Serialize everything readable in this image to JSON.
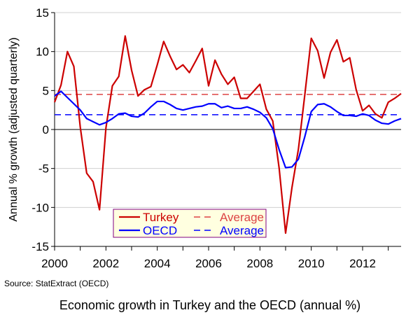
{
  "chart_data": {
    "type": "line",
    "title": "Economic growth in Turkey and the OECD (annual %)",
    "source": "Source: StatExtract (OECD)",
    "xlabel": "",
    "ylabel": "Annual % growth (adjusted quarterly)",
    "xlim": [
      2000,
      2013.5
    ],
    "ylim": [
      -15,
      15
    ],
    "x_tick_labels": [
      "2000",
      "2002",
      "2004",
      "2006",
      "2008",
      "2010",
      "2012"
    ],
    "y_tick_labels": [
      "15",
      "10",
      "5",
      "0",
      "-5",
      "-10",
      "-15"
    ],
    "grid": true,
    "legend_position": "bottom-left",
    "x": [
      2000,
      2000.25,
      2000.5,
      2000.75,
      2001,
      2001.25,
      2001.5,
      2001.75,
      2002,
      2002.25,
      2002.5,
      2002.75,
      2003,
      2003.25,
      2003.5,
      2003.75,
      2004,
      2004.25,
      2004.5,
      2004.75,
      2005,
      2005.25,
      2005.5,
      2005.75,
      2006,
      2006.25,
      2006.5,
      2006.75,
      2007,
      2007.25,
      2007.5,
      2007.75,
      2008,
      2008.25,
      2008.5,
      2008.75,
      2009,
      2009.25,
      2009.5,
      2009.75,
      2010,
      2010.25,
      2010.5,
      2010.75,
      2011,
      2011.25,
      2011.5,
      2011.75,
      2012,
      2012.25,
      2012.5,
      2012.75,
      2013,
      2013.25,
      2013.5
    ],
    "series": [
      {
        "name": "Turkey",
        "color": "#cc0000",
        "style": "solid",
        "values": [
          3.5,
          5.7,
          10.0,
          8.1,
          0.3,
          -5.6,
          -6.7,
          -10.3,
          0.2,
          5.6,
          6.8,
          12.0,
          7.6,
          4.3,
          5.1,
          5.5,
          8.3,
          11.3,
          9.4,
          7.7,
          8.3,
          7.3,
          8.8,
          10.4,
          5.6,
          8.9,
          7.1,
          5.8,
          6.7,
          4.0,
          4.0,
          4.9,
          5.8,
          2.6,
          1.1,
          -5.0,
          -13.3,
          -7.4,
          -2.5,
          4.5,
          11.7,
          10.1,
          6.6,
          9.9,
          11.5,
          8.7,
          9.2,
          5.1,
          2.4,
          3.1,
          2.0,
          1.5,
          3.5,
          4.0,
          4.6
        ]
      },
      {
        "name": "OECD",
        "color": "#0000ff",
        "style": "solid",
        "values": [
          4.3,
          4.9,
          4.1,
          3.3,
          2.5,
          1.4,
          1.0,
          0.6,
          0.9,
          1.4,
          2.0,
          2.1,
          1.7,
          1.6,
          2.1,
          2.9,
          3.6,
          3.6,
          3.2,
          2.7,
          2.5,
          2.7,
          2.9,
          3.0,
          3.3,
          3.3,
          2.8,
          3.0,
          2.7,
          2.7,
          2.9,
          2.6,
          2.2,
          1.5,
          0.1,
          -2.6,
          -4.9,
          -4.8,
          -3.8,
          -0.9,
          2.3,
          3.2,
          3.3,
          2.9,
          2.3,
          1.8,
          1.8,
          1.7,
          2.0,
          1.8,
          1.2,
          0.8,
          0.7,
          1.1,
          1.4
        ]
      }
    ],
    "averages": [
      {
        "name": "Average",
        "series": "Turkey",
        "color": "#dd4444",
        "style": "dashed",
        "value": 4.5
      },
      {
        "name": "Average",
        "series": "OECD",
        "color": "#0000ff",
        "style": "dashed",
        "value": 1.9
      }
    ],
    "legend": {
      "background": "#ffffe0",
      "border": "#800080"
    }
  }
}
